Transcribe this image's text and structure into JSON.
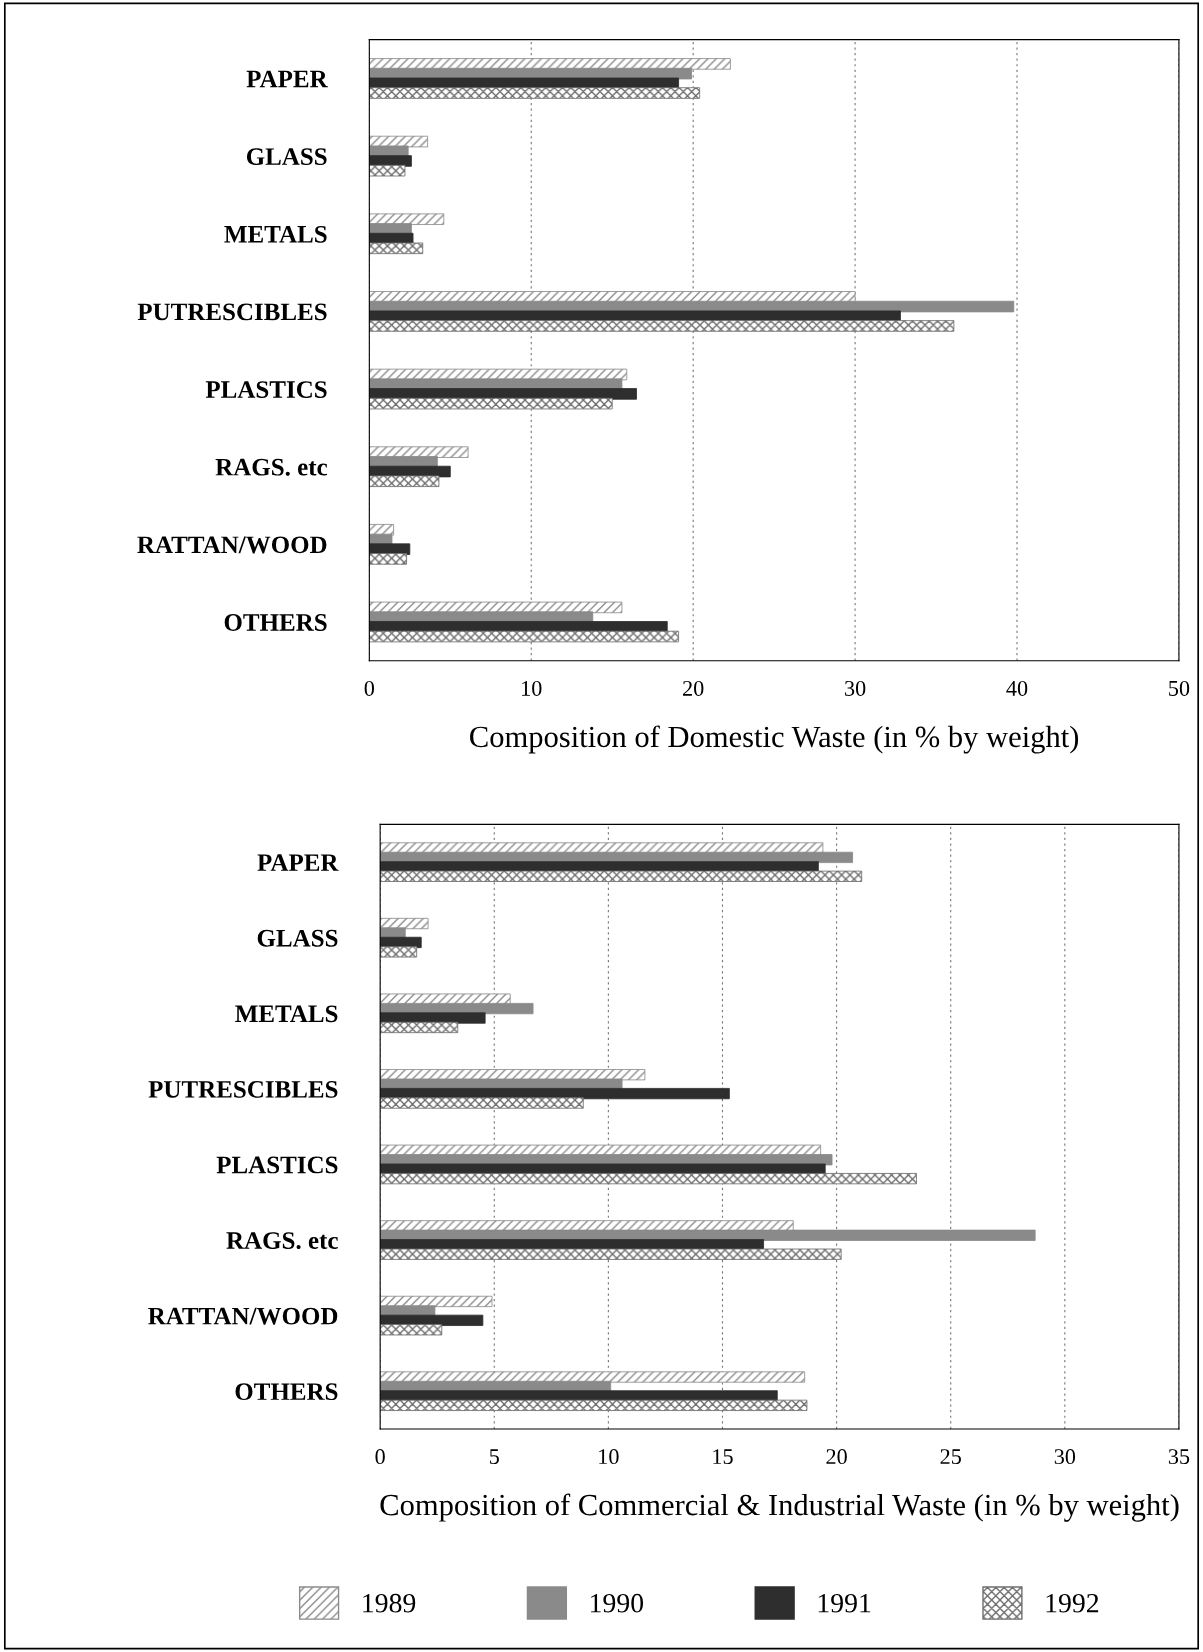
{
  "chart_data": [
    {
      "type": "bar",
      "orientation": "horizontal",
      "xlabel": "Composition of Domestic Waste (in % by weight)",
      "categories": [
        "PAPER",
        "GLASS",
        "METALS",
        "PUTRESCIBLES",
        "PLASTICS",
        "RAGS. etc",
        "RATTAN/WOOD",
        "OTHERS"
      ],
      "series": [
        {
          "color": "#8c8c8c",
          "values": [
            22.3,
            3.6,
            4.6,
            30.0,
            15.9,
            6.1,
            1.5,
            15.6
          ]
        },
        {
          "color": "#8a8a8a",
          "values": [
            19.9,
            2.4,
            2.6,
            39.8,
            15.6,
            4.2,
            1.4,
            13.8
          ]
        },
        {
          "color": "#2e2e2e",
          "values": [
            19.1,
            2.6,
            2.7,
            32.8,
            16.5,
            5.0,
            2.5,
            18.4
          ]
        },
        {
          "color": "#6e6e6e",
          "values": [
            20.4,
            2.2,
            3.3,
            36.1,
            15.0,
            4.3,
            2.3,
            19.1
          ]
        }
      ],
      "xlim": [
        0,
        50
      ],
      "xticks": [
        0,
        10,
        20,
        30,
        40,
        50
      ],
      "grid": "x"
    },
    {
      "type": "bar",
      "orientation": "horizontal",
      "xlabel": "Composition of Commercial & Industrial Waste (in % by weight)",
      "categories": [
        "PAPER",
        "GLASS",
        "METALS",
        "PUTRESCIBLES",
        "PLASTICS",
        "RAGS. etc",
        "RATTAN/WOOD",
        "OTHERS"
      ],
      "series": [
        {
          "name": "1989",
          "color": "#8c8c8c",
          "values": [
            19.4,
            2.1,
            5.7,
            11.6,
            19.3,
            18.1,
            4.9,
            18.6
          ]
        },
        {
          "name": "1990",
          "color": "#8a8a8a",
          "values": [
            20.7,
            1.1,
            6.7,
            10.6,
            19.8,
            28.7,
            2.4,
            10.1
          ]
        },
        {
          "name": "1991",
          "color": "#2e2e2e",
          "values": [
            19.2,
            1.8,
            4.6,
            15.3,
            19.5,
            16.8,
            4.5,
            17.4
          ]
        },
        {
          "name": "1992",
          "color": "#6e6e6e",
          "values": [
            21.1,
            1.6,
            3.4,
            8.9,
            23.5,
            20.2,
            2.7,
            18.7
          ]
        }
      ],
      "xlim": [
        0,
        35
      ],
      "xticks": [
        0,
        5,
        10,
        15,
        20,
        25,
        30,
        35
      ],
      "grid": "x",
      "legend": "bottom"
    }
  ]
}
